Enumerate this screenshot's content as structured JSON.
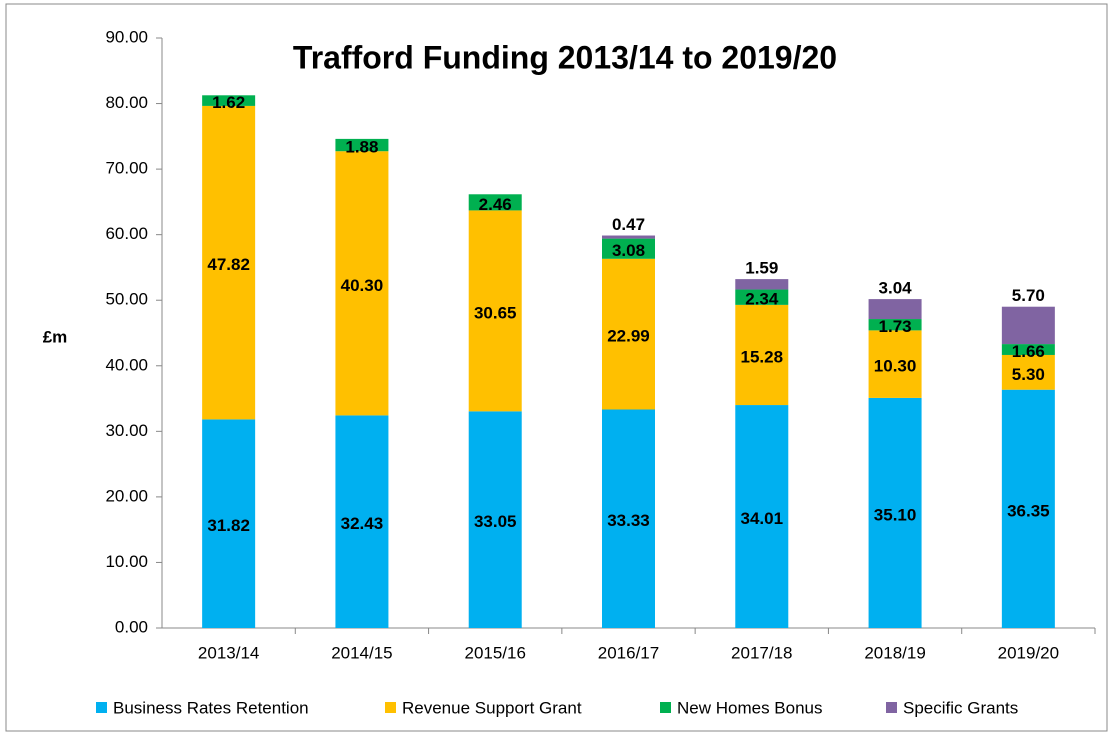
{
  "chart_data": {
    "type": "stacked_bar",
    "title": "Trafford Funding 2013/14 to 2019/20",
    "ylabel": "£m",
    "categories": [
      "2013/14",
      "2014/15",
      "2015/16",
      "2016/17",
      "2017/18",
      "2018/19",
      "2019/20"
    ],
    "series": [
      {
        "name": "Business Rates Retention",
        "color": "#00b0f0",
        "values": [
          31.82,
          32.43,
          33.05,
          33.33,
          34.01,
          35.1,
          36.35
        ],
        "value_labels": [
          "31.82",
          "32.43",
          "33.05",
          "33.33",
          "34.01",
          "35.10",
          "36.35"
        ]
      },
      {
        "name": "Revenue Support Grant",
        "color": "#ffc000",
        "values": [
          47.82,
          40.3,
          30.65,
          22.99,
          15.28,
          10.3,
          5.3
        ],
        "value_labels": [
          "47.82",
          "40.30",
          "30.65",
          "22.99",
          "15.28",
          "10.30",
          "5.30"
        ]
      },
      {
        "name": "New Homes Bonus",
        "color": "#00b050",
        "values": [
          1.62,
          1.88,
          2.46,
          3.08,
          2.34,
          1.73,
          1.66
        ],
        "value_labels": [
          "1.62",
          "1.88",
          "2.46",
          "3.08",
          "2.34",
          "1.73",
          "1.66"
        ]
      },
      {
        "name": "Specific Grants",
        "color": "#8064a2",
        "values": [
          null,
          null,
          null,
          0.47,
          1.59,
          3.04,
          5.7
        ],
        "value_labels": [
          null,
          null,
          null,
          "0.47",
          "1.59",
          "3.04",
          "5.70"
        ]
      }
    ],
    "ylim": [
      0,
      90
    ],
    "yticks": [
      {
        "value": 0,
        "label": "0.00"
      },
      {
        "value": 10,
        "label": "10.00"
      },
      {
        "value": 20,
        "label": "20.00"
      },
      {
        "value": 30,
        "label": "30.00"
      },
      {
        "value": 40,
        "label": "40.00"
      },
      {
        "value": 50,
        "label": "50.00"
      },
      {
        "value": 60,
        "label": "60.00"
      },
      {
        "value": 70,
        "label": "70.00"
      },
      {
        "value": 80,
        "label": "80.00"
      },
      {
        "value": 90,
        "label": "90.00"
      }
    ],
    "legend": "bottom"
  }
}
